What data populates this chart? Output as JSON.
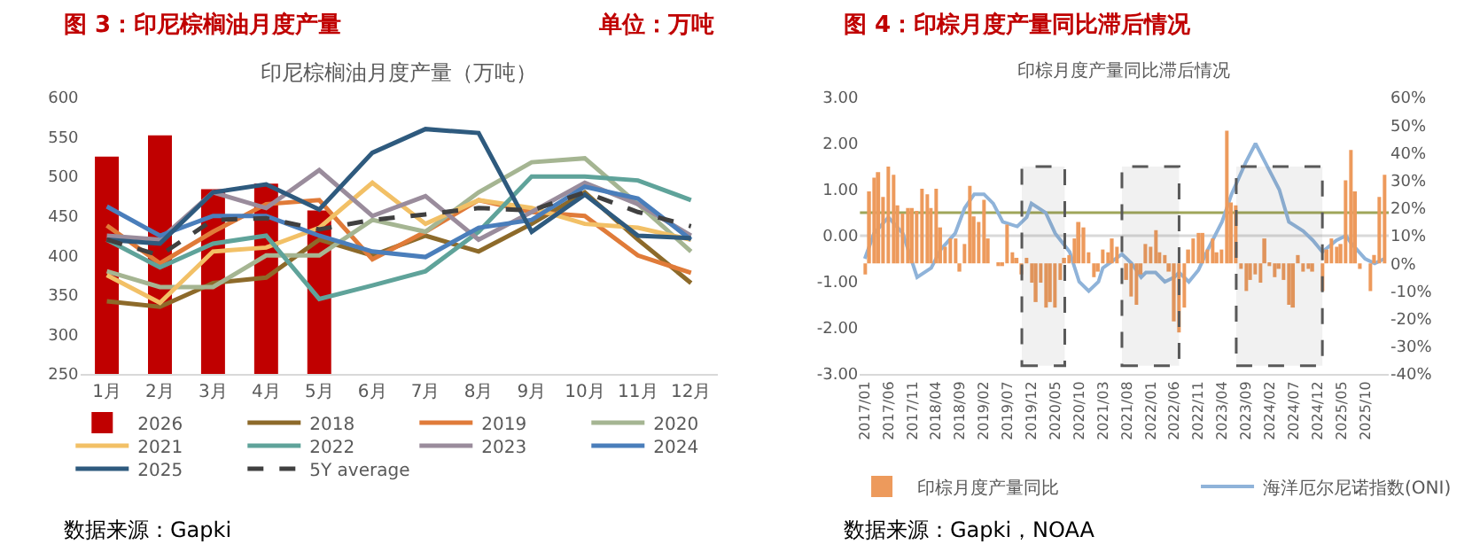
{
  "chart_data": [
    {
      "type": "line",
      "title": "图 3：印尼棕榈油月度产量",
      "subtitle": "印尼棕榈油月度产量（万吨）",
      "annotations": [
        "单位：万吨",
        "数据来源：Gapki"
      ],
      "categories": [
        "1月",
        "2月",
        "3月",
        "4月",
        "5月",
        "6月",
        "7月",
        "8月",
        "9月",
        "10月",
        "11月",
        "12月"
      ],
      "ylim": [
        250,
        600
      ],
      "yticks": [
        250,
        300,
        350,
        400,
        450,
        500,
        550,
        600
      ],
      "grid": false,
      "legend": "bottom",
      "series": [
        {
          "name": "2026",
          "type": "bar",
          "color": "#c00000",
          "values": [
            525,
            552,
            484,
            491,
            457,
            null,
            null,
            null,
            null,
            null,
            null,
            null
          ]
        },
        {
          "name": "2018",
          "color": "#8d6a2a",
          "values": [
            342,
            335,
            365,
            372,
            420,
            400,
            425,
            405,
            440,
            480,
            420,
            365
          ]
        },
        {
          "name": "2019",
          "color": "#e07b39",
          "values": [
            438,
            390,
            430,
            465,
            470,
            395,
            430,
            470,
            455,
            450,
            400,
            378
          ]
        },
        {
          "name": "2020",
          "color": "#a5b592",
          "values": [
            380,
            360,
            360,
            400,
            400,
            445,
            430,
            480,
            518,
            523,
            465,
            405
          ]
        },
        {
          "name": "2021",
          "color": "#f2c066",
          "values": [
            375,
            340,
            405,
            410,
            435,
            492,
            440,
            470,
            460,
            440,
            435,
            420
          ]
        },
        {
          "name": "2022",
          "color": "#5fa39a",
          "values": [
            420,
            385,
            415,
            425,
            345,
            362,
            380,
            430,
            500,
            500,
            495,
            470
          ]
        },
        {
          "name": "2023",
          "color": "#9a8c9c",
          "values": [
            425,
            420,
            480,
            460,
            508,
            450,
            475,
            420,
            455,
            492,
            465,
            425
          ]
        },
        {
          "name": "2024",
          "color": "#4a7ebb",
          "values": [
            462,
            425,
            450,
            450,
            425,
            405,
            398,
            435,
            445,
            487,
            472,
            420
          ]
        },
        {
          "name": "2025",
          "color": "#2e5a7e",
          "values": [
            420,
            415,
            480,
            490,
            458,
            530,
            560,
            555,
            430,
            477,
            425,
            422
          ]
        },
        {
          "name": "5Y average",
          "color": "#404040",
          "line_style": "dashed",
          "values": [
            420,
            400,
            445,
            447,
            433,
            445,
            452,
            460,
            457,
            480,
            455,
            437
          ]
        }
      ]
    },
    {
      "type": "bar",
      "title": "图 4：印棕月度产量同比滞后情况",
      "subtitle": "印棕月度产量同比滞后情况",
      "annotations": [
        "数据来源：Gapki，NOAA"
      ],
      "xlim": [
        "2016-12",
        "2026-03"
      ],
      "xticks": [
        {
          "value": "2017-01",
          "label": "2017/01"
        },
        {
          "value": "2017-06",
          "label": "2017/06"
        },
        {
          "value": "2017-11",
          "label": "2017/11"
        },
        {
          "value": "2018-04",
          "label": "2018/04"
        },
        {
          "value": "2018-09",
          "label": "2018/09"
        },
        {
          "value": "2019-02",
          "label": "2019/02"
        },
        {
          "value": "2019-07",
          "label": "2019/07"
        },
        {
          "value": "2019-12",
          "label": "2019/12"
        },
        {
          "value": "2020-05",
          "label": "2020/05"
        },
        {
          "value": "2020-10",
          "label": "2020/10"
        },
        {
          "value": "2021-03",
          "label": "2021/03"
        },
        {
          "value": "2021-08",
          "label": "2021/08"
        },
        {
          "value": "2022-01",
          "label": "2022/01"
        },
        {
          "value": "2022-06",
          "label": "2022/06"
        },
        {
          "value": "2022-11",
          "label": "2022/11"
        },
        {
          "value": "2023-04",
          "label": "2023/04"
        },
        {
          "value": "2023-09",
          "label": "2023/09"
        },
        {
          "value": "2024-02",
          "label": "2024/02"
        },
        {
          "value": "2024-07",
          "label": "2024/07"
        },
        {
          "value": "2024-12",
          "label": "2024/12"
        },
        {
          "value": "2025-05",
          "label": "2025/05"
        },
        {
          "value": "2025-10",
          "label": "2025/10"
        }
      ],
      "ylim": [
        -3,
        3
      ],
      "yticks": [
        {
          "value": -3,
          "label": "-3.00"
        },
        {
          "value": -2,
          "label": "-2.00"
        },
        {
          "value": -1,
          "label": "-1.00"
        },
        {
          "value": 0,
          "label": "0.00"
        },
        {
          "value": 1,
          "label": "1.00"
        },
        {
          "value": 2,
          "label": "2.00"
        },
        {
          "value": 3,
          "label": "3.00"
        }
      ],
      "y2lim": [
        -40,
        60
      ],
      "y2ticks": [
        {
          "value": -40,
          "label": "-40%"
        },
        {
          "value": -30,
          "label": "-30%"
        },
        {
          "value": -20,
          "label": "-20%"
        },
        {
          "value": -10,
          "label": "-10%"
        },
        {
          "value": 0,
          "label": "0%"
        },
        {
          "value": 10,
          "label": "10%"
        },
        {
          "value": 20,
          "label": "20%"
        },
        {
          "value": 30,
          "label": "30%"
        },
        {
          "value": 40,
          "label": "40%"
        },
        {
          "value": 50,
          "label": "50%"
        },
        {
          "value": 60,
          "label": "60%"
        }
      ],
      "grid": false,
      "legend": "bottom",
      "ref_lines": [
        {
          "axis": "y",
          "value": 0,
          "color": "#d9d9d9"
        },
        {
          "axis": "y",
          "value": 0.5,
          "color": "#9fa65a"
        }
      ],
      "bands": [
        {
          "axis": "x",
          "from": "2019-10",
          "to": "2020-07",
          "color": "#595959"
        },
        {
          "axis": "x",
          "from": "2021-07",
          "to": "2022-07",
          "color": "#595959"
        },
        {
          "axis": "x",
          "from": "2023-07",
          "to": "2025-01",
          "color": "#595959"
        }
      ],
      "x": [
        "2017-01",
        "2017-02",
        "2017-03",
        "2017-04",
        "2017-05",
        "2017-06",
        "2017-07",
        "2017-08",
        "2017-09",
        "2017-10",
        "2017-11",
        "2017-12",
        "2018-01",
        "2018-02",
        "2018-03",
        "2018-04",
        "2018-05",
        "2018-06",
        "2018-07",
        "2018-08",
        "2018-09",
        "2018-10",
        "2018-11",
        "2018-12",
        "2019-01",
        "2019-02",
        "2019-03",
        "2019-04",
        "2019-05",
        "2019-06",
        "2019-07",
        "2019-08",
        "2019-09",
        "2019-10",
        "2019-11",
        "2019-12",
        "2020-01",
        "2020-02",
        "2020-03",
        "2020-04",
        "2020-05",
        "2020-06",
        "2020-07",
        "2020-08",
        "2020-09",
        "2020-10",
        "2020-11",
        "2020-12",
        "2021-01",
        "2021-02",
        "2021-03",
        "2021-04",
        "2021-05",
        "2021-06",
        "2021-07",
        "2021-08",
        "2021-09",
        "2021-10",
        "2021-11",
        "2021-12",
        "2022-01",
        "2022-02",
        "2022-03",
        "2022-04",
        "2022-05",
        "2022-06",
        "2022-07",
        "2022-08",
        "2022-09",
        "2022-10",
        "2022-11",
        "2022-12",
        "2023-01",
        "2023-02",
        "2023-03",
        "2023-04",
        "2023-05",
        "2023-06",
        "2023-07",
        "2023-08",
        "2023-09",
        "2023-10",
        "2023-11",
        "2023-12",
        "2024-01",
        "2024-02",
        "2024-03",
        "2024-04",
        "2024-05",
        "2024-06",
        "2024-07",
        "2024-08",
        "2024-09",
        "2024-10",
        "2024-11",
        "2024-12",
        "2025-01",
        "2025-02",
        "2025-03",
        "2025-04",
        "2025-05",
        "2025-06",
        "2025-07",
        "2025-08",
        "2025-09",
        "2025-10",
        "2025-11",
        "2025-12",
        "2026-01",
        "2026-02"
      ],
      "series": [
        {
          "name": "印棕月度产量同比",
          "axis": "y2",
          "color": "#ed9a5c",
          "values": [
            -4,
            26,
            31,
            33,
            24,
            35,
            32,
            21,
            18,
            20,
            20,
            19,
            27,
            25,
            20,
            27,
            13,
            6,
            9,
            9,
            -3,
            7,
            28,
            17,
            15,
            23,
            9,
            0,
            -1,
            -1,
            14,
            4,
            2,
            -4,
            2,
            -7,
            -14,
            -7,
            -16,
            -14,
            -16,
            -6,
            2,
            3,
            9,
            15,
            13,
            4,
            -5,
            -3,
            5,
            4,
            9,
            6,
            0,
            -6,
            -12,
            -15,
            -4,
            7,
            6,
            12,
            4,
            3,
            -3,
            -21,
            -25,
            -16,
            5,
            9,
            11,
            11,
            5,
            9,
            4,
            5,
            48,
            22,
            21,
            -2,
            -10,
            -6,
            -4,
            -7,
            9,
            -1,
            -5,
            -2,
            -6,
            -15,
            -16,
            3,
            -3,
            -2,
            -3,
            0,
            -10,
            5,
            9,
            6,
            7,
            30,
            41,
            26,
            -2,
            0,
            -10,
            3,
            24,
            32
          ]
        },
        {
          "name": "海洋厄尔尼诺指数(ONI)",
          "type": "line",
          "color": "#8fb3d9",
          "x": [
            "2017-01",
            "2017-03",
            "2017-06",
            "2017-09",
            "2017-12",
            "2018-03",
            "2018-05",
            "2018-08",
            "2018-10",
            "2018-12",
            "2019-02",
            "2019-04",
            "2019-06",
            "2019-09",
            "2019-11",
            "2019-12",
            "2020-03",
            "2020-05",
            "2020-08",
            "2020-10",
            "2020-12",
            "2021-02",
            "2021-03",
            "2021-05",
            "2021-07",
            "2021-09",
            "2021-11",
            "2021-12",
            "2022-02",
            "2022-04",
            "2022-06",
            "2022-07",
            "2022-09",
            "2022-11",
            "2023-01",
            "2023-04",
            "2023-06",
            "2023-09",
            "2023-11",
            "2024-01",
            "2024-04",
            "2024-06",
            "2024-09",
            "2024-11",
            "2025-01",
            "2025-04",
            "2025-06",
            "2025-07",
            "2025-10",
            "2025-12",
            "2026-02"
          ],
          "values": [
            -0.5,
            0.05,
            0.4,
            0.05,
            -0.9,
            -0.7,
            -0.3,
            0.05,
            0.6,
            0.9,
            0.9,
            0.7,
            0.3,
            0.2,
            0.4,
            0.7,
            0.5,
            0.05,
            -0.35,
            -1.0,
            -1.2,
            -1.0,
            -0.7,
            -0.55,
            -0.4,
            -0.6,
            -0.9,
            -0.8,
            -0.8,
            -1.0,
            -0.9,
            -0.8,
            -1.0,
            -0.75,
            -0.3,
            0.3,
            0.9,
            1.6,
            2.0,
            1.6,
            1.0,
            0.3,
            0.1,
            -0.1,
            -0.35,
            -0.1,
            0.0,
            -0.15,
            -0.5,
            -0.6,
            -0.5
          ]
        }
      ]
    }
  ]
}
